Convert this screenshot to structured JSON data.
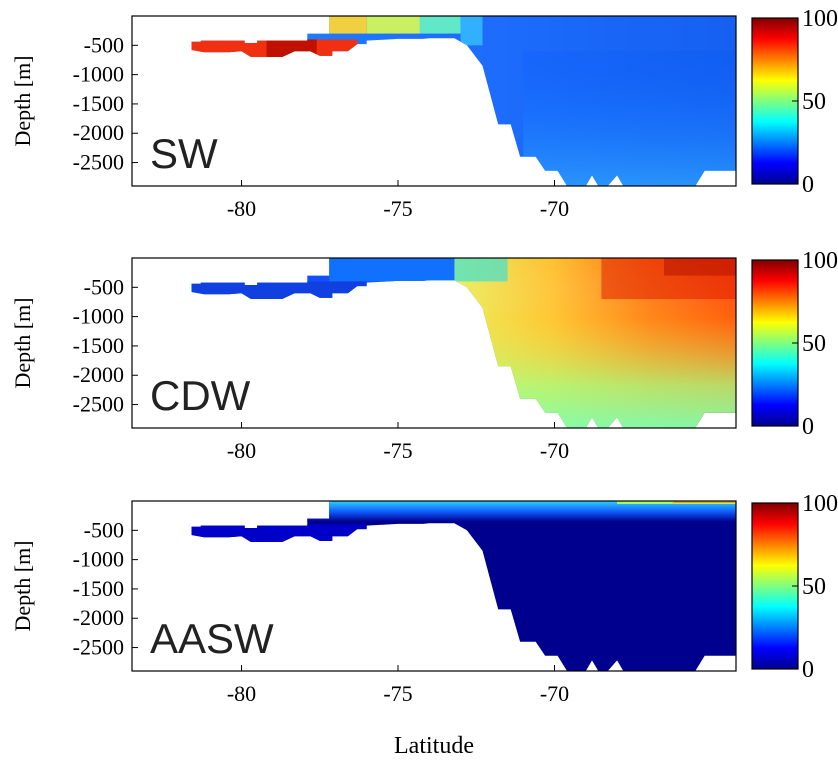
{
  "figure": {
    "xlabel": "Latitude",
    "ylabel": "Depth [m]"
  },
  "chart_data": [
    {
      "type": "heatmap",
      "panel_label": "SW",
      "xlabel": "",
      "ylabel": "Depth [m]",
      "xlim": [
        -83.5,
        -64.2
      ],
      "ylim": [
        -2900,
        0
      ],
      "x_ticks": [
        -80,
        -75,
        -70
      ],
      "y_ticks": [
        -500,
        -1000,
        -1500,
        -2000,
        -2500
      ],
      "colorbar": {
        "min": 0,
        "max": 100,
        "ticks": [
          0,
          50,
          100
        ],
        "colormap": "jet"
      },
      "value_summary": [
        {
          "region": "ice-shelf cavity (-81.5 to -76, -450 to -650 m)",
          "value": 95
        },
        {
          "region": "shelf break near -77 to -73 (0 to -400 m)",
          "value": 60
        },
        {
          "region": "open ocean -72 to -64 (surface)",
          "value": 10
        },
        {
          "region": "open ocean -72 to -64 (deep)",
          "value": 18
        }
      ]
    },
    {
      "type": "heatmap",
      "panel_label": "CDW",
      "xlabel": "",
      "ylabel": "Depth [m]",
      "xlim": [
        -83.5,
        -64.2
      ],
      "ylim": [
        -2900,
        0
      ],
      "x_ticks": [
        -80,
        -75,
        -70
      ],
      "y_ticks": [
        -500,
        -1000,
        -1500,
        -2000,
        -2500
      ],
      "colorbar": {
        "min": 0,
        "max": 100,
        "ticks": [
          0,
          50,
          100
        ],
        "colormap": "jet"
      },
      "value_summary": [
        {
          "region": "ice-shelf cavity",
          "value": 3
        },
        {
          "region": "open ocean -69 to -64 (0 to -800 m)",
          "value": 95
        },
        {
          "region": "open ocean -72 to -64 (deep)",
          "value": 50
        }
      ]
    },
    {
      "type": "heatmap",
      "panel_label": "AASW",
      "xlabel": "Latitude",
      "ylabel": "Depth [m]",
      "xlim": [
        -83.5,
        -64.2
      ],
      "ylim": [
        -2900,
        0
      ],
      "x_ticks": [
        -80,
        -75,
        -70
      ],
      "y_ticks": [
        -500,
        -1000,
        -1500,
        -2000,
        -2500
      ],
      "colorbar": {
        "min": 0,
        "max": 100,
        "ticks": [
          0,
          50,
          100
        ],
        "colormap": "jet"
      },
      "value_summary": [
        {
          "region": "surface layer (0 to -150 m)",
          "value": 30
        },
        {
          "region": "interior",
          "value": 3
        }
      ]
    }
  ]
}
